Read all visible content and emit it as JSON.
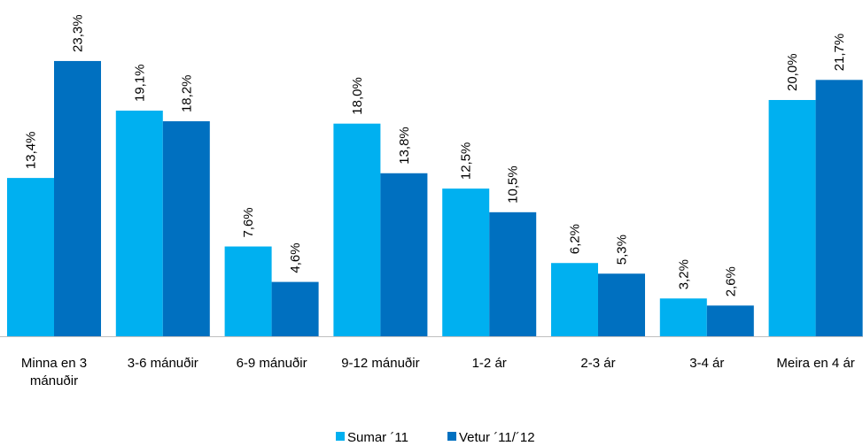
{
  "chart_data": {
    "type": "bar",
    "title": "",
    "xlabel": "",
    "ylabel": "",
    "categories": [
      "Minna en 3 mánuðir",
      "3-6 mánuðir",
      "6-9 mánuðir",
      "9-12 mánuðir",
      "1-2 ár",
      "2-3 ár",
      "3-4 ár",
      "Meira en 4 ár"
    ],
    "category_lines": [
      [
        "Minna en 3",
        "mánuðir"
      ],
      [
        "3-6 mánuðir"
      ],
      [
        "6-9 mánuðir"
      ],
      [
        "9-12 mánuðir"
      ],
      [
        "1-2 ár"
      ],
      [
        "2-3 ár"
      ],
      [
        "3-4 ár"
      ],
      [
        "Meira en 4 ár"
      ]
    ],
    "series": [
      {
        "name": "Sumar ´11",
        "color": "#00b0f0",
        "values": [
          13.4,
          19.1,
          7.6,
          18.0,
          12.5,
          6.2,
          3.2,
          20.0
        ],
        "labels": [
          "13,4%",
          "19,1%",
          "7,6%",
          "18,0%",
          "12,5%",
          "6,2%",
          "3,2%",
          "20,0%"
        ]
      },
      {
        "name": "Vetur ´11/´12",
        "color": "#0070c0",
        "values": [
          23.3,
          18.2,
          4.6,
          13.8,
          10.5,
          5.3,
          2.6,
          21.7
        ],
        "labels": [
          "23,3%",
          "18,2%",
          "4,6%",
          "13,8%",
          "10,5%",
          "5,3%",
          "2,6%",
          "21,7%"
        ]
      }
    ],
    "ylim": [
      0,
      25
    ],
    "grid": false,
    "legend": "bottom-center",
    "axis_color": "#bfbfbf"
  }
}
